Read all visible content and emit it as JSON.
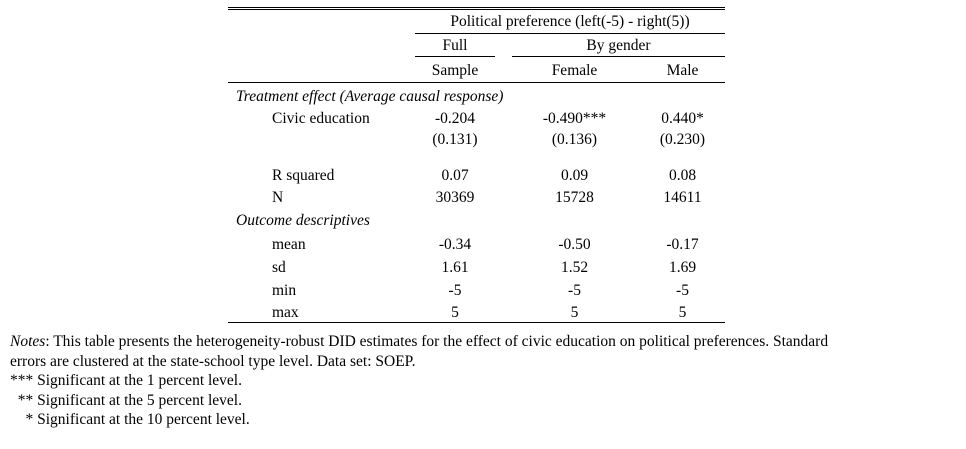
{
  "header": {
    "dependent_var": "Political preference (left(-5) - right(5))",
    "col_full_line1": "Full",
    "col_full_line2": "Sample",
    "group_by_gender": "By gender",
    "col_female": "Female",
    "col_male": "Male"
  },
  "sections": {
    "treatment": "Treatment effect (Average causal response)",
    "descriptives": "Outcome descriptives"
  },
  "rows": {
    "civic": {
      "label": "Civic education",
      "full": "-0.204",
      "female": "-0.490***",
      "male": "0.440*"
    },
    "civic_se": {
      "full": "(0.131)",
      "female": "(0.136)",
      "male": "(0.230)"
    },
    "r2": {
      "label": "R squared",
      "full": "0.07",
      "female": "0.09",
      "male": "0.08"
    },
    "n": {
      "label": "N",
      "full": "30369",
      "female": "15728",
      "male": "14611"
    },
    "mean": {
      "label": "mean",
      "full": "-0.34",
      "female": "-0.50",
      "male": "-0.17"
    },
    "sd": {
      "label": "sd",
      "full": "1.61",
      "female": "1.52",
      "male": "1.69"
    },
    "min": {
      "label": "min",
      "full": "-5",
      "female": "-5",
      "male": "-5"
    },
    "max": {
      "label": "max",
      "full": "5",
      "female": "5",
      "male": "5"
    }
  },
  "notes": {
    "label": "Notes",
    "text": ": This table presents the heterogeneity-robust DID estimates for the effect of civic education on political preferences.  Standard",
    "text2": "errors are clustered at the state-school type level.  Data set: SOEP.",
    "sig1": "*** Significant at the 1 percent level.",
    "sig5": "  ** Significant at the 5 percent level.",
    "sig10": "    * Significant at the 10 percent level."
  }
}
